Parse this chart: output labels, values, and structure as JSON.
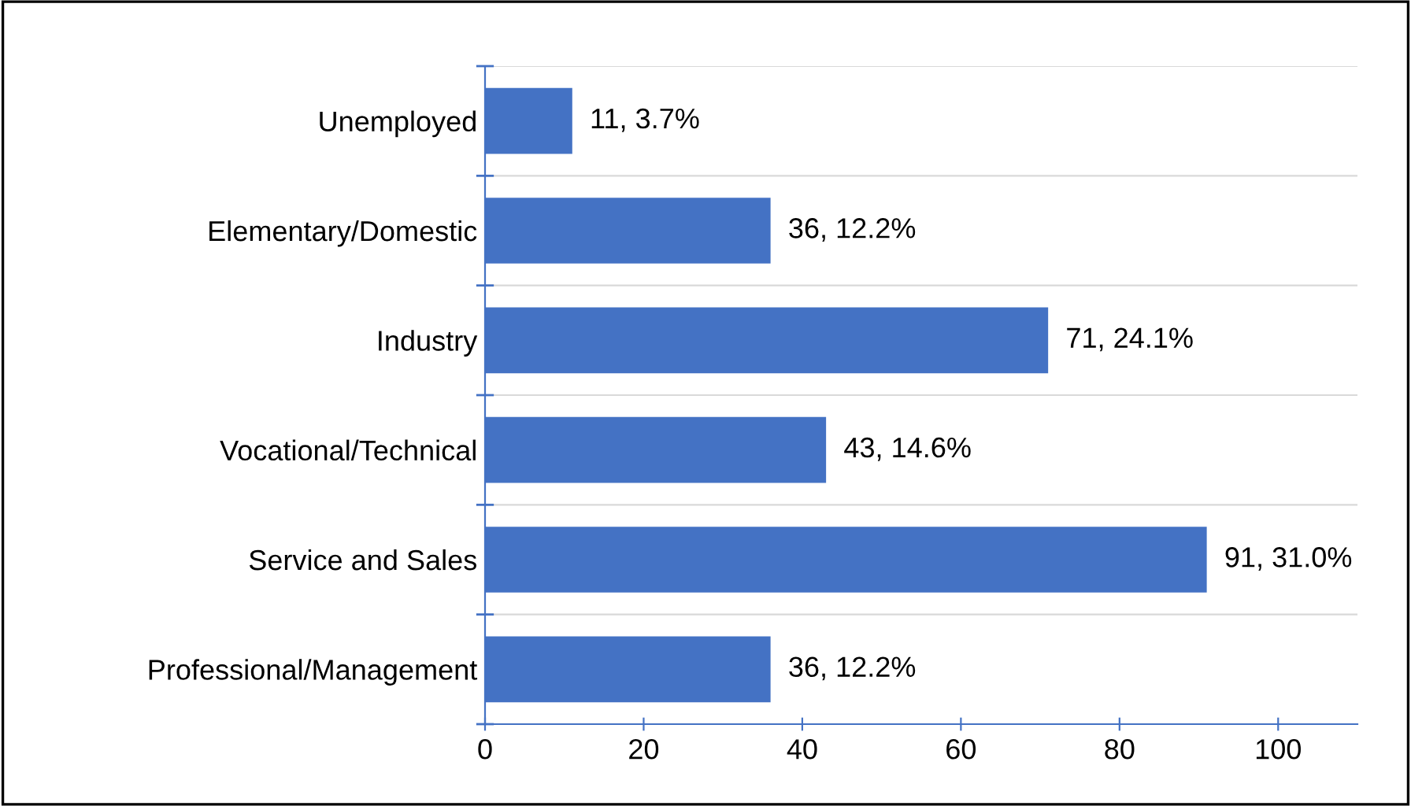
{
  "chart_data": {
    "type": "bar",
    "orientation": "horizontal",
    "categories": [
      "Unemployed",
      "Elementary/Domestic",
      "Industry",
      "Vocational/Technical",
      "Service and Sales",
      "Professional/Management"
    ],
    "values": [
      11,
      36,
      71,
      43,
      91,
      36
    ],
    "value_labels": [
      "11, 3.7%",
      "36, 12.2%",
      "71, 24.1%",
      "43, 14.6%",
      "91, 31.0%",
      "36, 12.2%"
    ],
    "color": "#4472c4",
    "xlim": [
      0,
      110
    ],
    "xticks": [
      0,
      20,
      40,
      60,
      80,
      100
    ],
    "grid": "y"
  }
}
